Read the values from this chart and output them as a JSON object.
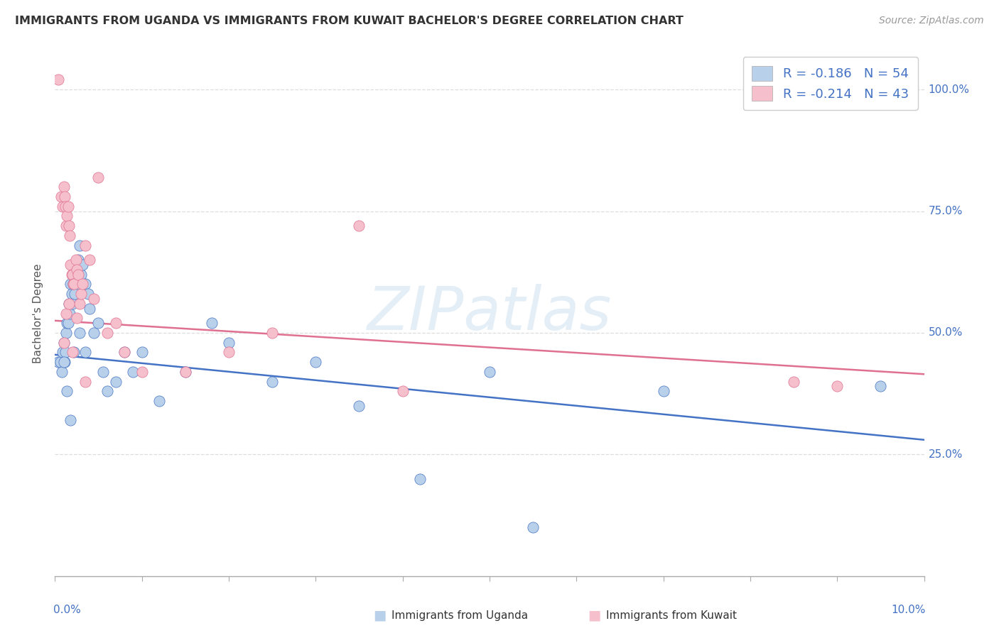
{
  "title": "IMMIGRANTS FROM UGANDA VS IMMIGRANTS FROM KUWAIT BACHELOR'S DEGREE CORRELATION CHART",
  "source": "Source: ZipAtlas.com",
  "ylabel": "Bachelor's Degree",
  "xlim": [
    0.0,
    10.0
  ],
  "ylim": [
    0.0,
    1.08
  ],
  "uganda_R": -0.186,
  "uganda_N": 54,
  "kuwait_R": -0.214,
  "kuwait_N": 43,
  "uganda_color": "#b8d0ea",
  "kuwait_color": "#f5bfcc",
  "uganda_line_color": "#4472c4",
  "kuwait_line_color": "#e07090",
  "legend_text_color": "#4472c4",
  "background_color": "#ffffff",
  "watermark": "ZIPatlas",
  "grid_color": "#dddddd",
  "uganda_trend_x": [
    0.0,
    10.0
  ],
  "uganda_trend_y": [
    0.455,
    0.28
  ],
  "kuwait_trend_x": [
    0.0,
    10.0
  ],
  "kuwait_trend_y": [
    0.525,
    0.415
  ],
  "uganda_x": [
    0.04,
    0.06,
    0.08,
    0.09,
    0.1,
    0.11,
    0.12,
    0.13,
    0.14,
    0.15,
    0.16,
    0.17,
    0.18,
    0.19,
    0.2,
    0.21,
    0.22,
    0.23,
    0.24,
    0.25,
    0.26,
    0.27,
    0.28,
    0.3,
    0.32,
    0.35,
    0.38,
    0.4,
    0.45,
    0.5,
    0.55,
    0.6,
    0.7,
    0.8,
    0.9,
    1.0,
    1.2,
    1.5,
    1.8,
    2.0,
    2.5,
    3.0,
    3.5,
    4.2,
    5.0,
    5.5,
    7.0,
    9.5,
    0.1,
    0.14,
    0.18,
    0.22,
    0.28,
    0.35
  ],
  "uganda_y": [
    0.44,
    0.44,
    0.42,
    0.46,
    0.48,
    0.44,
    0.46,
    0.5,
    0.52,
    0.52,
    0.56,
    0.54,
    0.6,
    0.58,
    0.56,
    0.6,
    0.62,
    0.58,
    0.64,
    0.62,
    0.6,
    0.65,
    0.68,
    0.62,
    0.64,
    0.6,
    0.58,
    0.55,
    0.5,
    0.52,
    0.42,
    0.38,
    0.4,
    0.46,
    0.42,
    0.46,
    0.36,
    0.42,
    0.52,
    0.48,
    0.4,
    0.44,
    0.35,
    0.2,
    0.42,
    0.1,
    0.38,
    0.39,
    0.44,
    0.38,
    0.32,
    0.46,
    0.5,
    0.46
  ],
  "kuwait_x": [
    0.04,
    0.07,
    0.09,
    0.1,
    0.11,
    0.12,
    0.13,
    0.14,
    0.15,
    0.16,
    0.17,
    0.18,
    0.19,
    0.2,
    0.21,
    0.22,
    0.24,
    0.25,
    0.27,
    0.28,
    0.3,
    0.32,
    0.35,
    0.4,
    0.45,
    0.5,
    0.6,
    0.7,
    0.8,
    1.0,
    1.5,
    2.0,
    2.5,
    3.5,
    4.0,
    8.5,
    9.0,
    0.1,
    0.13,
    0.16,
    0.2,
    0.25,
    0.35
  ],
  "kuwait_y": [
    1.02,
    0.78,
    0.76,
    0.8,
    0.78,
    0.76,
    0.72,
    0.74,
    0.76,
    0.72,
    0.7,
    0.64,
    0.62,
    0.62,
    0.6,
    0.6,
    0.65,
    0.63,
    0.62,
    0.56,
    0.58,
    0.6,
    0.68,
    0.65,
    0.57,
    0.82,
    0.5,
    0.52,
    0.46,
    0.42,
    0.42,
    0.46,
    0.5,
    0.72,
    0.38,
    0.4,
    0.39,
    0.48,
    0.54,
    0.56,
    0.46,
    0.53,
    0.4
  ]
}
